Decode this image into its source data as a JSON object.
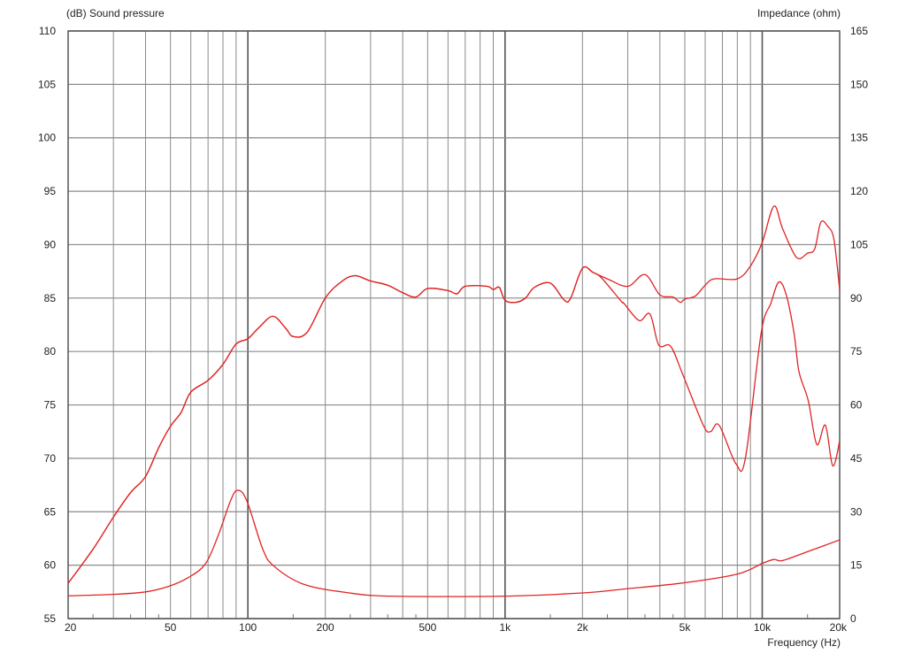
{
  "chart_data": {
    "type": "line",
    "left_axis_label": "(dB)  Sound pressure",
    "right_axis_label": "Impedance  (ohm)",
    "xlabel": "Frequency  (Hz)",
    "x_scale": "log",
    "xlim": [
      20,
      20000
    ],
    "ylim": [
      55,
      110
    ],
    "y2lim": [
      0,
      165
    ],
    "grid": true,
    "line_color": "#e02424",
    "x_ticks": [
      {
        "value": 20,
        "label": "20"
      },
      {
        "value": 50,
        "label": "50"
      },
      {
        "value": 100,
        "label": "100"
      },
      {
        "value": 200,
        "label": "200"
      },
      {
        "value": 500,
        "label": "500"
      },
      {
        "value": 1000,
        "label": "1k"
      },
      {
        "value": 2000,
        "label": "2k"
      },
      {
        "value": 5000,
        "label": "5k"
      },
      {
        "value": 10000,
        "label": "10k"
      },
      {
        "value": 20000,
        "label": "20k"
      }
    ],
    "y_ticks": [
      55,
      60,
      65,
      70,
      75,
      80,
      85,
      90,
      95,
      100,
      105,
      110
    ],
    "y2_ticks": [
      0,
      15,
      30,
      45,
      60,
      75,
      90,
      105,
      120,
      135,
      150,
      165
    ],
    "series": [
      {
        "axis": "left",
        "x": [
          20,
          25,
          30,
          35,
          40,
          45,
          50,
          55,
          60,
          70,
          80,
          90,
          100,
          110,
          125,
          140,
          150,
          170,
          200,
          230,
          260,
          300,
          350,
          400,
          450,
          500,
          600,
          650,
          700,
          850,
          900,
          950,
          1000,
          1100,
          1200,
          1300,
          1500,
          1700,
          1800,
          2000,
          2200,
          2500,
          3000,
          3500,
          4000,
          4500,
          4800,
          5000,
          5500,
          6000,
          6500,
          8000,
          9000,
          10000,
          11100,
          12000,
          13600,
          15000,
          16000,
          16900,
          18000,
          19000,
          20000
        ],
        "y": [
          58.3,
          61.5,
          64.5,
          66.8,
          68.3,
          71,
          73,
          74.3,
          76.2,
          77.3,
          78.8,
          80.7,
          81.2,
          82.2,
          83.3,
          82.2,
          81.4,
          81.8,
          85,
          86.5,
          87.1,
          86.6,
          86.2,
          85.5,
          85.1,
          85.9,
          85.7,
          85.4,
          86.1,
          86.1,
          85.8,
          86.0,
          84.8,
          84.6,
          85,
          86,
          86.4,
          84.8,
          85,
          87.8,
          87.4,
          86.8,
          86.1,
          87.2,
          85.3,
          85.1,
          84.6,
          84.9,
          85.2,
          86.2,
          86.8,
          86.8,
          88,
          90.2,
          93.6,
          91.5,
          88.8,
          89.2,
          89.6,
          92.1,
          91.7,
          90.5,
          85.8
        ]
      },
      {
        "axis": "left",
        "x": [
          20,
          25,
          30,
          35,
          40,
          45,
          50,
          55,
          60,
          70,
          80,
          90,
          100,
          110,
          125,
          140,
          150,
          170,
          200,
          230,
          260,
          300,
          350,
          400,
          450,
          500,
          600,
          650,
          700,
          850,
          900,
          950,
          1000,
          1100,
          1200,
          1300,
          1500,
          1700,
          1800,
          2000,
          2200,
          2370,
          2830,
          2900,
          3320,
          3660,
          3960,
          4400,
          4900,
          5900,
          6300,
          6800,
          7900,
          8600,
          9900,
          10800,
          11600,
          12400,
          13300,
          13900,
          15100,
          16300,
          17600,
          18800,
          20000
        ],
        "y": [
          58.3,
          61.5,
          64.5,
          66.8,
          68.3,
          71,
          73,
          74.3,
          76.2,
          77.3,
          78.8,
          80.7,
          81.2,
          82.2,
          83.3,
          82.2,
          81.4,
          81.8,
          85,
          86.5,
          87.1,
          86.6,
          86.2,
          85.5,
          85.1,
          85.9,
          85.7,
          85.4,
          86.1,
          86.1,
          85.8,
          86.0,
          84.8,
          84.6,
          85,
          86,
          86.4,
          84.8,
          85,
          87.8,
          87.4,
          86.9,
          84.7,
          84.5,
          82.9,
          83.5,
          80.6,
          80.5,
          77.9,
          73.1,
          72.5,
          73.1,
          69.5,
          70.0,
          81.7,
          84.5,
          86.5,
          85.3,
          81.7,
          78.1,
          75.4,
          71.3,
          73.1,
          69.3,
          71.6
        ]
      },
      {
        "axis": "right",
        "x": [
          20,
          30,
          40,
          49,
          58.6,
          68.4,
          76.9,
          85.3,
          90.9,
          98.8,
          114,
          126,
          164,
          243,
          362,
          1000,
          2000,
          2900,
          4900,
          8000,
          10000,
          11100,
          12000,
          15000,
          20000
        ],
        "y": [
          6.4,
          6.8,
          7.5,
          9,
          11.5,
          15.4,
          23.6,
          32.8,
          36,
          33.3,
          19.7,
          14.8,
          9.7,
          7.3,
          6.3,
          6.3,
          7.2,
          8.3,
          10,
          12.5,
          15.5,
          16.6,
          16.3,
          18.8,
          22.1
        ]
      }
    ]
  }
}
